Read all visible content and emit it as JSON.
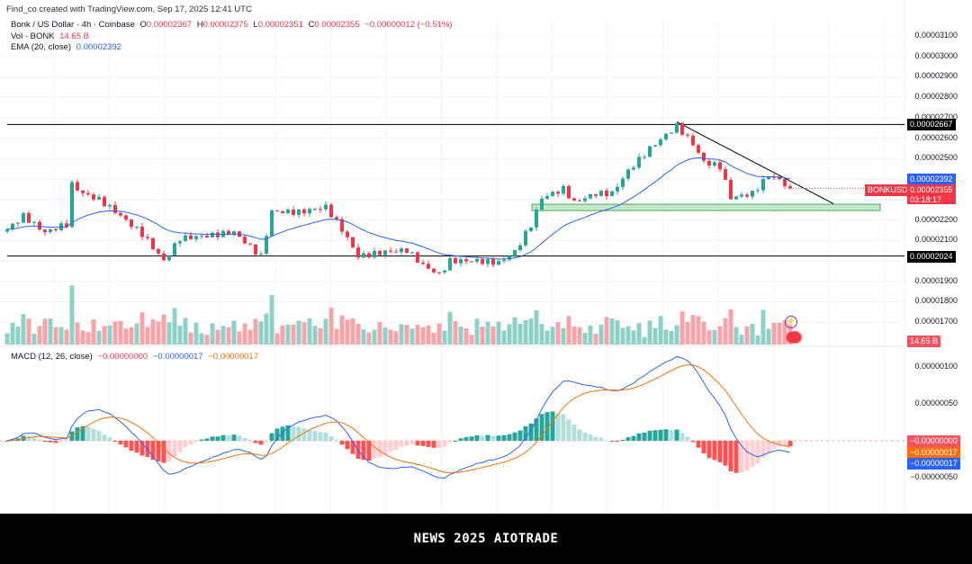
{
  "header": {
    "credit": "Find_co created with TradingView.com, Sep 17, 2025 12:41 UTC"
  },
  "legend": {
    "symbol": "Bonk / US Dollar · 4h · Coinbase",
    "o_label": "O",
    "open": "0.00002367",
    "h_label": "H",
    "high": "0.00002375",
    "l_label": "L",
    "low": "0.00002351",
    "c_label": "C",
    "close": "0.00002355",
    "change": "−0.00000012 (−0.51%)",
    "vol_label": "Vol · BONK",
    "vol_value": "14.65 B",
    "ema_label": "EMA (20, close)",
    "ema_value": "0.00002392",
    "macd_label": "MACD (12, 26, close)",
    "macd_hist": "−0.00000000",
    "macd_line": "−0.00000017",
    "macd_signal": "−0.00000017"
  },
  "price_axis": [
    "0.00003100",
    "0.00003000",
    "0.00002900",
    "0.00002800",
    "0.00002700",
    "0.00002600",
    "0.00002500",
    "0.00002200",
    "0.00002100",
    "0.00001900",
    "0.00001800",
    "0.00001700"
  ],
  "price_tags": {
    "resistance": "0.00002667",
    "support": "0.00002024",
    "ema": "0.00002392",
    "symbol": "BONKUSD",
    "last": "0.00002355",
    "countdown": "03:18:17",
    "volume": "14.65 B"
  },
  "macd_axis": [
    "0.00000100",
    "0.00000050",
    "−0.00000050"
  ],
  "macd_tags": {
    "hist": "−0.00000000",
    "signal": "−0.00000017",
    "macd": "−0.00000017"
  },
  "colors": {
    "up": "#26a69a",
    "down": "#f23645",
    "ema": "#2962ff",
    "signal": "#ff6d00"
  },
  "chart_data": {
    "type": "candlestick",
    "price_unit": "1e-8 USD",
    "close_keyframes": [
      [
        0,
        2154
      ],
      [
        3,
        2220
      ],
      [
        7,
        2140
      ],
      [
        11,
        2180
      ],
      [
        12,
        2374
      ],
      [
        14,
        2330
      ],
      [
        17,
        2300
      ],
      [
        20,
        2242
      ],
      [
        25,
        2132
      ],
      [
        29,
        2000
      ],
      [
        32,
        2110
      ],
      [
        37,
        2123
      ],
      [
        42,
        2140
      ],
      [
        47,
        2022
      ],
      [
        49,
        2242
      ],
      [
        54,
        2238
      ],
      [
        59,
        2264
      ],
      [
        62,
        2154
      ],
      [
        65,
        2022
      ],
      [
        70,
        2044
      ],
      [
        74,
        2053
      ],
      [
        77,
        1978
      ],
      [
        80,
        1934
      ],
      [
        82,
        2000
      ],
      [
        87,
        2000
      ],
      [
        91,
        1991
      ],
      [
        94,
        2044
      ],
      [
        97,
        2176
      ],
      [
        99,
        2308
      ],
      [
        103,
        2352
      ],
      [
        105,
        2286
      ],
      [
        109,
        2330
      ],
      [
        112,
        2330
      ],
      [
        115,
        2440
      ],
      [
        119,
        2550
      ],
      [
        122,
        2616
      ],
      [
        124,
        2660
      ],
      [
        127,
        2572
      ],
      [
        129,
        2484
      ],
      [
        132,
        2462
      ],
      [
        134,
        2308
      ],
      [
        138,
        2330
      ],
      [
        141,
        2418
      ],
      [
        143,
        2396
      ],
      [
        145,
        2355
      ]
    ],
    "horizontal_levels": [
      2667,
      2024
    ],
    "support_zone": [
      2246,
      2277
    ],
    "trendline": [
      [
        124,
        2680
      ],
      [
        153,
        2280
      ]
    ],
    "ylim": [
      1580,
      3130
    ]
  }
}
